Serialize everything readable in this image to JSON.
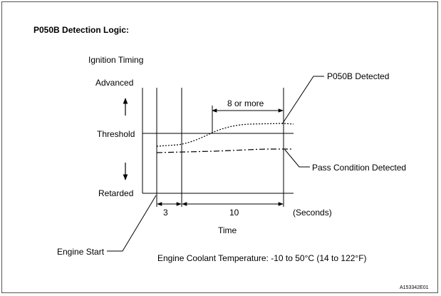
{
  "heading": "P050B Detection Logic:",
  "y_axis": {
    "label": "Ignition Timing",
    "top": "Advanced",
    "threshold": "Threshold",
    "bottom": "Retarded"
  },
  "interval_label": "8 or more",
  "x_axis": {
    "label": "Time",
    "unit_label": "(Seconds)",
    "segments": [
      "3",
      "10"
    ]
  },
  "callouts": {
    "detected": "P050B Detected",
    "pass": "Pass Condition Detected",
    "engine_start": "Engine Start"
  },
  "condition": "Engine Coolant Temperature: -10 to 50°C (14 to 122°F)",
  "figure_id": "A153342E01"
}
